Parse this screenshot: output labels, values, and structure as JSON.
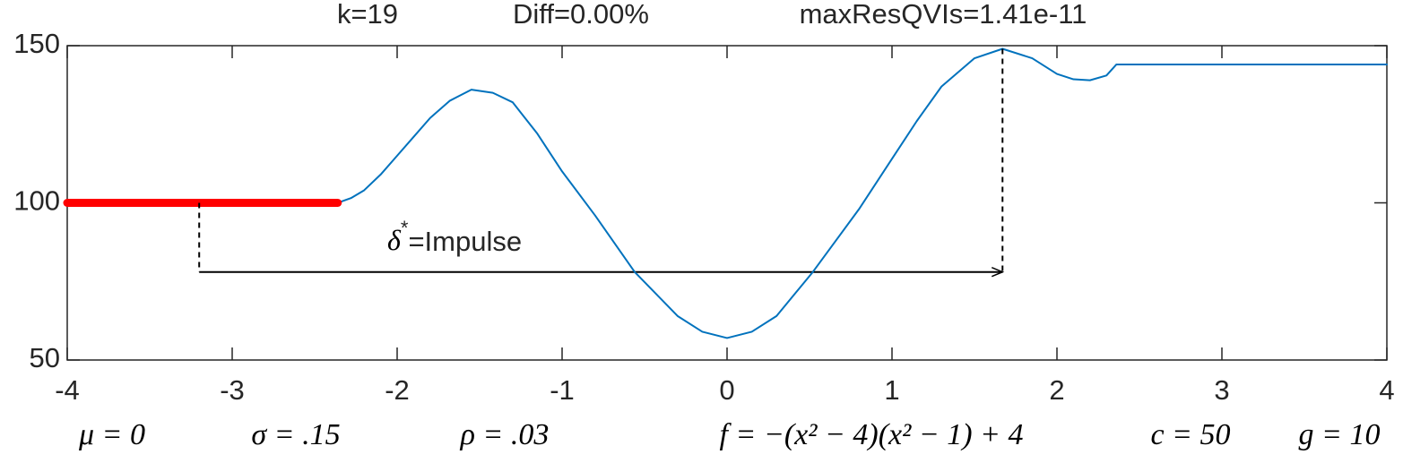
{
  "chart_data": {
    "type": "line",
    "title_parts": [
      "k=19",
      "Diff=0.00%",
      "maxResQVIs=1.41e-11"
    ],
    "x": [
      -4,
      -3.2,
      -2.36,
      -2.28,
      -2.2,
      -2.1,
      -2.0,
      -1.9,
      -1.8,
      -1.68,
      -1.55,
      -1.42,
      -1.3,
      -1.15,
      -1.0,
      -0.8,
      -0.56,
      -0.3,
      -0.15,
      0,
      0.15,
      0.3,
      0.52,
      0.8,
      1.0,
      1.15,
      1.3,
      1.5,
      1.67,
      1.85,
      2.0,
      2.1,
      2.2,
      2.3,
      2.36,
      4
    ],
    "series": [
      {
        "color": "#ff0000",
        "values": [
          100,
          100,
          100,
          null,
          null,
          null,
          null,
          null,
          null,
          null,
          null,
          null,
          null,
          null,
          null,
          null,
          null,
          null,
          null,
          null,
          null,
          null,
          null,
          null,
          null,
          null,
          null,
          null,
          null,
          null,
          null,
          null,
          null,
          null,
          null,
          null
        ]
      },
      {
        "color": "#0072bd",
        "values": [
          100,
          100,
          100,
          101.5,
          104,
          109,
          115,
          121,
          127,
          132.5,
          136,
          135,
          132,
          122,
          110,
          96,
          78,
          64,
          59,
          57,
          59,
          64,
          78,
          98,
          114,
          126,
          137,
          146,
          149,
          146,
          141,
          139.3,
          139,
          140.5,
          144,
          144
        ]
      }
    ],
    "arrow": {
      "x": [
        -3.2,
        1.67
      ],
      "y": 78
    },
    "annotation": {
      "symbol": "δ",
      "superscript": "*",
      "text": "=Impulse"
    },
    "parameters": [
      "μ = 0",
      "σ = .15",
      "ρ = .03",
      "f = −(x² − 4)(x² − 1) + 4",
      "c = 50",
      "g = 10"
    ],
    "xlim": [
      -4,
      4
    ],
    "ylim": [
      50,
      150
    ],
    "xticks": [
      -4,
      -3,
      -2,
      -1,
      0,
      1,
      2,
      3,
      4
    ],
    "yticks": [
      50,
      100,
      150
    ]
  }
}
